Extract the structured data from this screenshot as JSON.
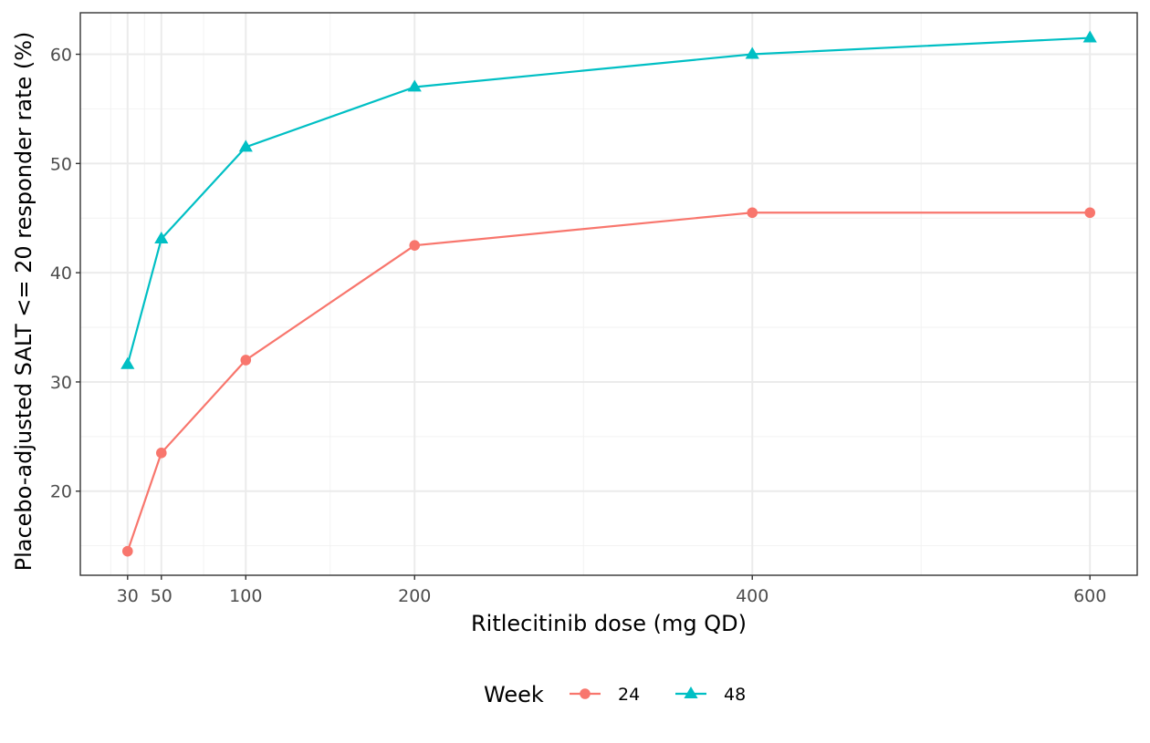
{
  "chart_data": {
    "type": "line",
    "title": "",
    "xlabel": "Ritlecitinib dose (mg QD)",
    "ylabel": "Placebo-adjusted SALT <= 20 responder rate (%)",
    "x": [
      30,
      50,
      100,
      200,
      400,
      600
    ],
    "x_ticks": [
      30,
      50,
      100,
      200,
      400,
      600
    ],
    "x_tick_labels": [
      "30",
      "50",
      "100",
      "200",
      "400",
      "600"
    ],
    "y_ticks": [
      20,
      30,
      40,
      50,
      60
    ],
    "y_tick_labels": [
      "20",
      "30",
      "40",
      "50",
      "60"
    ],
    "xlim": [
      2,
      628
    ],
    "ylim": [
      12.3,
      63.8
    ],
    "grid": true,
    "legend": {
      "title": "Week",
      "placement": "bottom"
    },
    "series": [
      {
        "name": "24",
        "color": "#F8766D",
        "marker": "circle",
        "values": [
          14.5,
          23.5,
          32.0,
          42.5,
          45.5,
          45.5
        ]
      },
      {
        "name": "48",
        "color": "#00BFC4",
        "marker": "triangle",
        "values": [
          31.6,
          43.1,
          51.5,
          57.0,
          60.0,
          61.5
        ]
      }
    ]
  }
}
